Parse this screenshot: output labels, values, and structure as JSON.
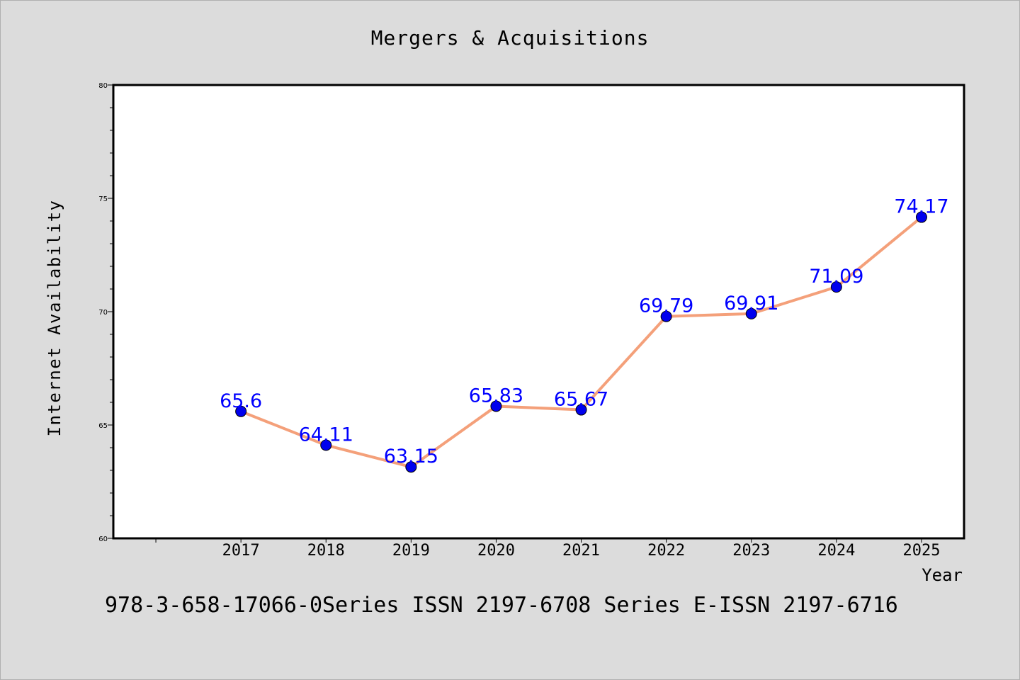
{
  "chart_data": {
    "type": "line",
    "title": "Mergers & Acquisitions",
    "xlabel": "Year",
    "ylabel": "Internet Availability",
    "footer": "978-3-658-17066-0Series ISSN 2197-6708 Series E-ISSN 2197-6716",
    "x": [
      "2017",
      "2018",
      "2019",
      "2020",
      "2021",
      "2022",
      "2023",
      "2024",
      "2025"
    ],
    "series": [
      {
        "values": [
          65.6,
          64.11,
          63.15,
          65.83,
          65.67,
          69.79,
          69.91,
          71.09,
          74.17
        ],
        "labels": [
          "65.6",
          "64.11",
          "63.15",
          "65.83",
          "65.67",
          "69.79",
          "69.91",
          "71.09",
          "74.17"
        ]
      }
    ],
    "ylim": [
      60,
      80
    ],
    "xlim": [
      2015.5,
      2025.5
    ],
    "y_ticks": [
      "60",
      "65",
      "70",
      "75",
      "80"
    ],
    "grid": false,
    "colors": {
      "line": "#f4a07a",
      "marker": "#0000ee",
      "label": "#0000ff",
      "background": "#dcdcdc",
      "plot_bg": "#ffffff"
    }
  }
}
